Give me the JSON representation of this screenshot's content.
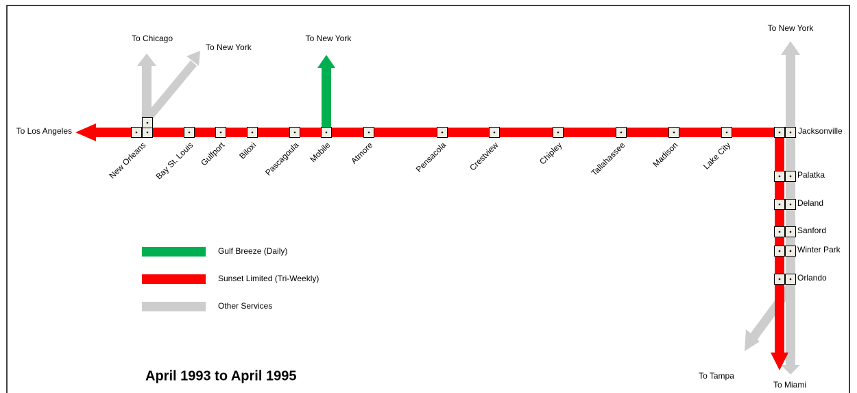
{
  "title": "April 1993 to April 1995",
  "destinations": {
    "west": "To Los Angeles",
    "chicago": "To Chicago",
    "new_york_no": "To New York",
    "new_york_mobile": "To New York",
    "new_york_east": "To New York",
    "tampa": "To Tampa",
    "miami": "To Miami"
  },
  "stations": [
    "New Orleans",
    "Bay St. Louis",
    "Gulfport",
    "Biloxi",
    "Pascagoula",
    "Mobile",
    "Atmore",
    "Pensacola",
    "Crestview",
    "Chipley",
    "Tallahassee",
    "Madison",
    "Lake City"
  ],
  "terminal": "Jacksonville",
  "south_stations": [
    "Palatka",
    "Deland",
    "Sanford",
    "Winter Park",
    "Orlando"
  ],
  "legend": [
    "Gulf Breeze  (Daily)",
    "Sunset Limited (Tri-Weekly)",
    "Other Services"
  ]
}
